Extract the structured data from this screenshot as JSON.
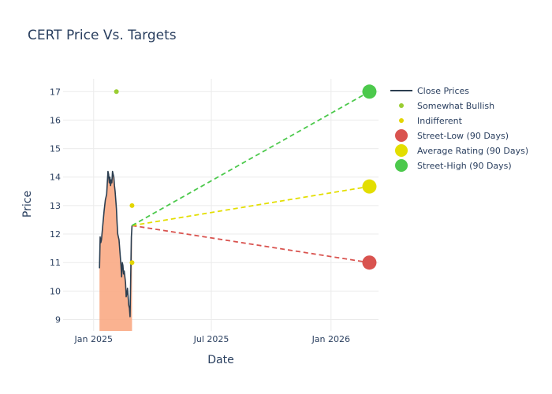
{
  "chart_data": {
    "type": "line",
    "title": "CERT Price Vs. Targets",
    "xlabel": "Date",
    "ylabel": "Price",
    "x_range": [
      "2024-11-15",
      "2026-03-15"
    ],
    "y_range": [
      8.6,
      17.45
    ],
    "x_ticks": [
      {
        "date": "2025-01-01",
        "label": "Jan 2025"
      },
      {
        "date": "2025-07-01",
        "label": "Jul 2025"
      },
      {
        "date": "2026-01-01",
        "label": "Jan 2026"
      }
    ],
    "y_ticks": [
      9,
      10,
      11,
      12,
      13,
      14,
      15,
      16,
      17
    ],
    "grid": true,
    "legend_position": "right",
    "colors": {
      "close": "#2c3e50",
      "fill": "#f9a47c",
      "somewhat_bullish": "#9acd32",
      "indifferent": "#e3d500",
      "street_low": "#d9534f",
      "average": "#e3de00",
      "street_high": "#4cc94c",
      "grid": "#ebebeb"
    },
    "series": [
      {
        "name": "Close Prices",
        "kind": "line",
        "points": [
          [
            "2025-01-10",
            10.8
          ],
          [
            "2025-01-11",
            11.9
          ],
          [
            "2025-01-12",
            11.7
          ],
          [
            "2025-01-13",
            11.8
          ],
          [
            "2025-01-15",
            12.3
          ],
          [
            "2025-01-17",
            12.8
          ],
          [
            "2025-01-19",
            13.2
          ],
          [
            "2025-01-21",
            13.4
          ],
          [
            "2025-01-22",
            13.8
          ],
          [
            "2025-01-23",
            14.2
          ],
          [
            "2025-01-24",
            14.1
          ],
          [
            "2025-01-25",
            13.8
          ],
          [
            "2025-01-26",
            14.0
          ],
          [
            "2025-01-27",
            13.7
          ],
          [
            "2025-01-28",
            13.9
          ],
          [
            "2025-01-29",
            13.8
          ],
          [
            "2025-01-30",
            14.2
          ],
          [
            "2025-01-31",
            14.1
          ],
          [
            "2025-02-01",
            14.0
          ],
          [
            "2025-02-02",
            13.7
          ],
          [
            "2025-02-03",
            13.5
          ],
          [
            "2025-02-04",
            13.2
          ],
          [
            "2025-02-05",
            12.9
          ],
          [
            "2025-02-06",
            12.4
          ],
          [
            "2025-02-07",
            12.0
          ],
          [
            "2025-02-08",
            11.9
          ],
          [
            "2025-02-09",
            11.8
          ],
          [
            "2025-02-10",
            11.5
          ],
          [
            "2025-02-11",
            11.2
          ],
          [
            "2025-02-12",
            10.9
          ],
          [
            "2025-02-13",
            10.5
          ],
          [
            "2025-02-14",
            11.0
          ],
          [
            "2025-02-15",
            10.9
          ],
          [
            "2025-02-16",
            10.6
          ],
          [
            "2025-02-17",
            10.7
          ],
          [
            "2025-02-18",
            10.5
          ],
          [
            "2025-02-19",
            10.3
          ],
          [
            "2025-02-20",
            9.8
          ],
          [
            "2025-02-21",
            9.9
          ],
          [
            "2025-02-22",
            10.1
          ],
          [
            "2025-02-23",
            9.8
          ],
          [
            "2025-02-24",
            9.5
          ],
          [
            "2025-02-25",
            9.4
          ],
          [
            "2025-02-26",
            9.1
          ],
          [
            "2025-02-27",
            10.5
          ],
          [
            "2025-02-28",
            11.9
          ],
          [
            "2025-03-01",
            12.3
          ]
        ]
      },
      {
        "name": "Somewhat Bullish",
        "kind": "markers",
        "points": [
          [
            "2025-02-05",
            17
          ]
        ]
      },
      {
        "name": "Indifferent",
        "kind": "markers",
        "points": [
          [
            "2025-03-01",
            13
          ],
          [
            "2025-03-01",
            11
          ]
        ]
      },
      {
        "name": "Street-Low (90 Days)",
        "kind": "target",
        "start": [
          "2025-03-01",
          12.3
        ],
        "end": [
          "2026-03-01",
          11
        ]
      },
      {
        "name": "Average Rating (90 Days)",
        "kind": "target",
        "start": [
          "2025-03-01",
          12.3
        ],
        "end": [
          "2026-03-01",
          13.67
        ]
      },
      {
        "name": "Street-High (90 Days)",
        "kind": "target",
        "start": [
          "2025-03-01",
          12.3
        ],
        "end": [
          "2026-03-01",
          17
        ]
      }
    ],
    "legend": [
      {
        "label": "Close Prices",
        "symbol": "line",
        "color": "#2c3e50"
      },
      {
        "label": "Somewhat Bullish",
        "symbol": "small-dot",
        "color": "#9acd32"
      },
      {
        "label": "Indifferent",
        "symbol": "small-dot",
        "color": "#e3d500"
      },
      {
        "label": "Street-Low (90 Days)",
        "symbol": "big-dot",
        "color": "#d9534f"
      },
      {
        "label": "Average Rating (90 Days)",
        "symbol": "big-dot",
        "color": "#e3de00"
      },
      {
        "label": "Street-High (90 Days)",
        "symbol": "big-dot",
        "color": "#4cc94c"
      }
    ]
  }
}
